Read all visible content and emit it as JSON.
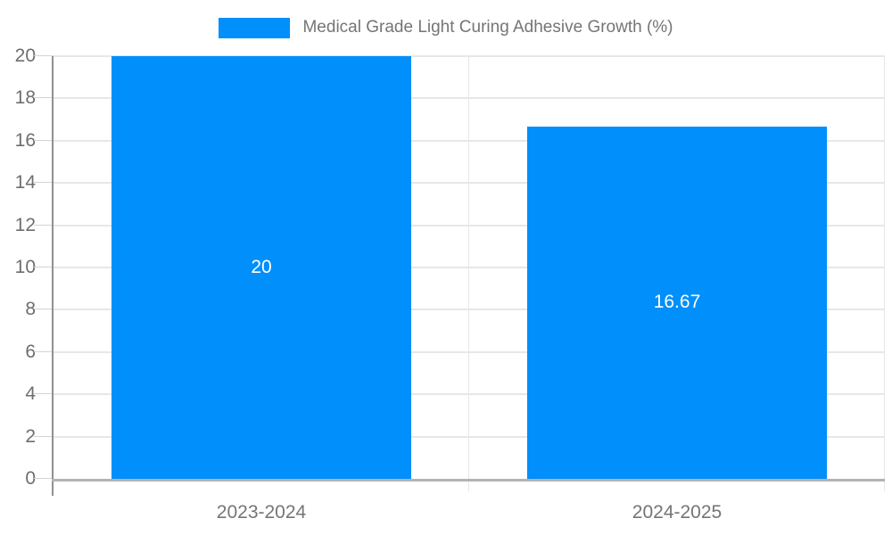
{
  "legend": {
    "label": "Medical Grade Light Curing Adhesive Growth (%)"
  },
  "colors": {
    "bar": "#008FFB",
    "grid": "#e7e7e7",
    "tick": "#d4d4d4",
    "y_axis": "#909090",
    "x_axis": "#b3b3b3",
    "y_label": "#6e6e6e",
    "x_label": "#757575",
    "legend_text": "#757575",
    "value_label": "#ffffff",
    "background": "#ffffff"
  },
  "chart_data": {
    "type": "bar",
    "title": "Medical Grade Light Curing Adhesive Growth (%)",
    "categories": [
      "2023-2024",
      "2024-2025"
    ],
    "values": [
      20,
      16.67
    ],
    "value_labels": [
      "20",
      "16.67"
    ],
    "series": [
      {
        "name": "Medical Grade Light Curing Adhesive Growth (%)",
        "values": [
          20,
          16.67
        ]
      }
    ],
    "xlabel": "",
    "ylabel": "",
    "ylim": [
      0,
      20
    ],
    "ytick_step": 2,
    "grid": true,
    "legend_position": "top",
    "bar_color": "#008FFB"
  }
}
